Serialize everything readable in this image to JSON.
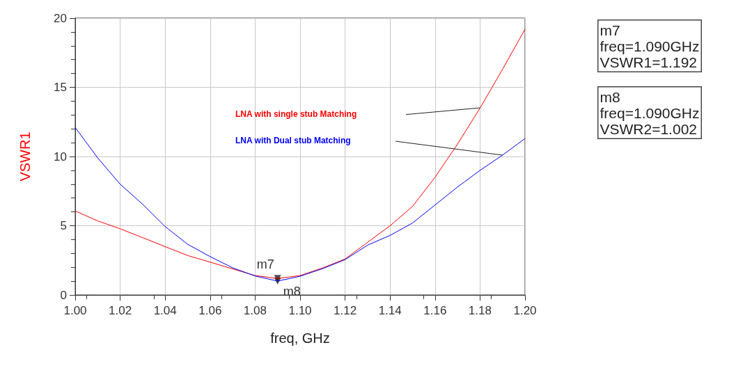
{
  "chart_data": {
    "type": "line",
    "xlabel": "freq, GHz",
    "ylabel": "VSWR1",
    "x": [
      1.0,
      1.01,
      1.02,
      1.03,
      1.04,
      1.05,
      1.06,
      1.07,
      1.08,
      1.09,
      1.1,
      1.11,
      1.12,
      1.13,
      1.14,
      1.15,
      1.16,
      1.17,
      1.18,
      1.19,
      1.2
    ],
    "series": [
      {
        "name": "LNA with single stub Matching",
        "color": "#ff0000",
        "values": [
          6.07,
          5.35,
          4.78,
          4.14,
          3.49,
          2.85,
          2.37,
          1.88,
          1.4,
          1.192,
          1.4,
          1.95,
          2.6,
          3.8,
          5.0,
          6.4,
          8.5,
          10.9,
          13.5,
          16.3,
          19.2
        ]
      },
      {
        "name": "LNA with Dual stub Matching",
        "color": "#0000ff",
        "values": [
          12.1,
          9.9,
          8.0,
          6.55,
          4.94,
          3.66,
          2.77,
          1.96,
          1.37,
          1.002,
          1.35,
          1.9,
          2.55,
          3.6,
          4.3,
          5.2,
          6.5,
          7.8,
          9.0,
          10.1,
          11.3
        ]
      },
      {
        "type": "scatter",
        "marker": "triangle",
        "color": "#222222",
        "x": [
          1.09,
          1.09
        ],
        "values": [
          1.192,
          1.002
        ]
      }
    ],
    "xlim": [
      1.0,
      1.2
    ],
    "xticks": [
      {
        "value": 1.0,
        "label": "1.00"
      },
      {
        "value": 1.02,
        "label": "1.02"
      },
      {
        "value": 1.04,
        "label": "1.04"
      },
      {
        "value": 1.06,
        "label": "1.06"
      },
      {
        "value": 1.08,
        "label": "1.08"
      },
      {
        "value": 1.1,
        "label": "1.10"
      },
      {
        "value": 1.12,
        "label": "1.12"
      },
      {
        "value": 1.14,
        "label": "1.14"
      },
      {
        "value": 1.16,
        "label": "1.16"
      },
      {
        "value": 1.18,
        "label": "1.18"
      },
      {
        "value": 1.2,
        "label": "1.20"
      }
    ],
    "ylim": [
      0,
      20
    ],
    "yticks": [
      0,
      5,
      10,
      15,
      20
    ],
    "grid": true,
    "legend": false,
    "marker": "none",
    "line_style": "solid",
    "annotations": [
      {
        "text": "m7",
        "x": 1.09,
        "y": 1.192
      },
      {
        "text": "m8",
        "x": 1.09,
        "y": 1.002
      },
      "m7\nfreq=1.090GHz\nVSWR1=1.192",
      "m8\nfreq=1.090GHz\nVSWR2=1.002"
    ]
  }
}
